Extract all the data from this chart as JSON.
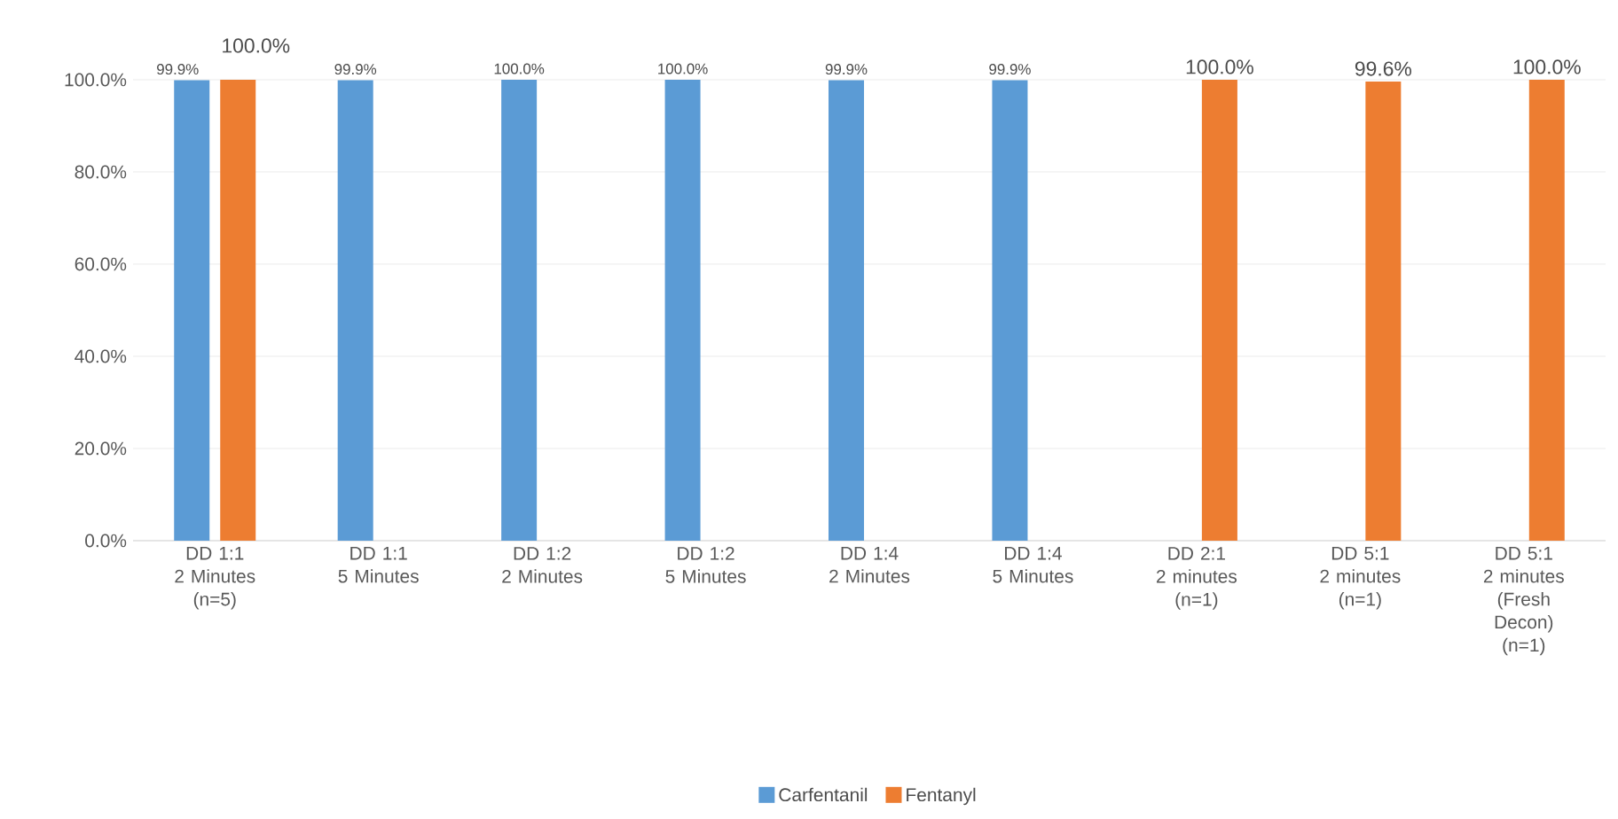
{
  "chart_data": {
    "type": "bar",
    "categories": [
      "DD 1:1\n2 Minutes\n(n=5)",
      "DD 1:1\n5 Minutes",
      "DD 1:2\n2 Minutes",
      "DD 1:2\n5 Minutes",
      "DD 1:4\n2 Minutes",
      "DD 1:4\n5 Minutes",
      "DD 2:1\n2 minutes\n(n=1)",
      "DD 5:1\n2 minutes\n(n=1)",
      "DD 5:1\n2 minutes\n(Fresh\nDecon)\n(n=1)"
    ],
    "series": [
      {
        "name": "Carfentanil",
        "color": "#5b9bd5",
        "values": [
          99.9,
          99.9,
          100.0,
          100.0,
          99.9,
          99.9,
          null,
          null,
          null
        ],
        "value_labels": [
          "99.9%",
          "99.9%",
          "100.0%",
          "100.0%",
          "99.9%",
          "99.9%",
          null,
          null,
          null
        ]
      },
      {
        "name": "Fentanyl",
        "color": "#ed7d31",
        "values": [
          100.0,
          null,
          null,
          null,
          null,
          null,
          100.0,
          99.6,
          100.0
        ],
        "value_labels": [
          "100.0%",
          null,
          null,
          null,
          null,
          null,
          "100.0%",
          "99.6%",
          "100.0%"
        ]
      }
    ],
    "ylim": [
      0,
      100
    ],
    "yticks": [
      {
        "value": 0,
        "label": "0.0%"
      },
      {
        "value": 20,
        "label": "20.0%"
      },
      {
        "value": 40,
        "label": "40.0%"
      },
      {
        "value": 60,
        "label": "60.0%"
      },
      {
        "value": 80,
        "label": "80.0%"
      },
      {
        "value": 100,
        "label": "100.0%"
      }
    ],
    "grid": "y",
    "legend": "bottom"
  }
}
